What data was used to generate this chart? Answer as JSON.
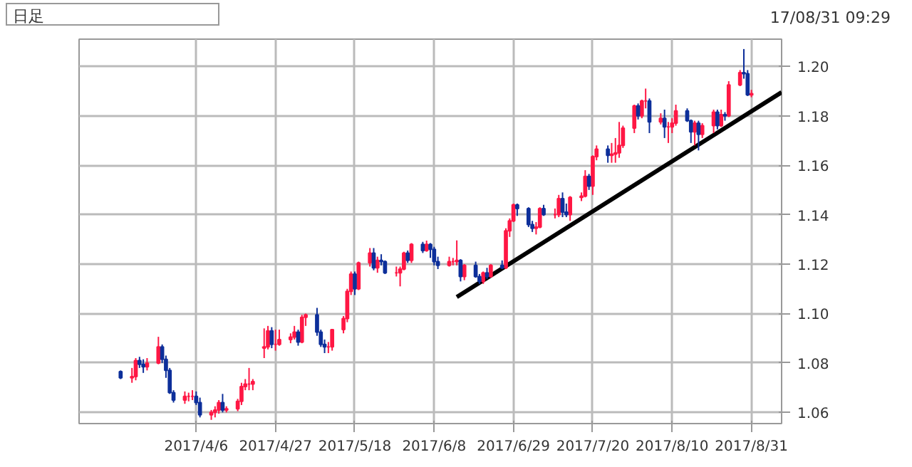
{
  "chart_data": {
    "type": "candlestick",
    "annotations": [
      "日足",
      "17/08/31 09:29"
    ],
    "xlim": [
      "2017-03-06",
      "2017-09-08"
    ],
    "xticks": [
      {
        "value": "2017-04-06",
        "label": "2017/4/6"
      },
      {
        "value": "2017-04-27",
        "label": "2017/4/27"
      },
      {
        "value": "2017-05-18",
        "label": "2017/5/18"
      },
      {
        "value": "2017-06-08",
        "label": "2017/6/8"
      },
      {
        "value": "2017-06-29",
        "label": "2017/6/29"
      },
      {
        "value": "2017-07-20",
        "label": "2017/7/20"
      },
      {
        "value": "2017-08-10",
        "label": "2017/8/10"
      },
      {
        "value": "2017-08-31",
        "label": "2017/8/31"
      }
    ],
    "ylim": [
      1.0555,
      1.211
    ],
    "yticks": [
      1.06,
      1.08,
      {
        "value": 1.1,
        "label": "1.10"
      },
      1.12,
      1.14,
      1.16,
      1.18,
      {
        "value": 1.2,
        "label": "1.20"
      }
    ],
    "grid": true,
    "series": [
      {
        "color": "#ff1744",
        "x": [
          "2017-03-20",
          "2017-03-21",
          "2017-03-24",
          "2017-03-27",
          "2017-04-03",
          "2017-04-04",
          "2017-04-05",
          "2017-04-10",
          "2017-04-11",
          "2017-04-12",
          "2017-04-14",
          "2017-04-17",
          "2017-04-18",
          "2017-04-19",
          "2017-04-20",
          "2017-04-21",
          "2017-04-24",
          "2017-04-25",
          "2017-04-27",
          "2017-04-28",
          "2017-05-01",
          "2017-05-02",
          "2017-05-04",
          "2017-05-05",
          "2017-05-11",
          "2017-05-12",
          "2017-05-15",
          "2017-05-16",
          "2017-05-17",
          "2017-05-19",
          "2017-05-22",
          "2017-05-24",
          "2017-05-29",
          "2017-05-30",
          "2017-05-31",
          "2017-06-02",
          "2017-06-06",
          "2017-06-12",
          "2017-06-13",
          "2017-06-14",
          "2017-06-16",
          "2017-06-21",
          "2017-06-23",
          "2017-06-27",
          "2017-06-28",
          "2017-06-29",
          "2017-07-05",
          "2017-07-06",
          "2017-07-10",
          "2017-07-11",
          "2017-07-14",
          "2017-07-17",
          "2017-07-18",
          "2017-07-20",
          "2017-07-21",
          "2017-07-25",
          "2017-07-26",
          "2017-07-27",
          "2017-07-28",
          "2017-07-31",
          "2017-08-02",
          "2017-08-03",
          "2017-08-07",
          "2017-08-09",
          "2017-08-10",
          "2017-08-11",
          "2017-08-16",
          "2017-08-18",
          "2017-08-21",
          "2017-08-23",
          "2017-08-25",
          "2017-08-28",
          "2017-08-31"
        ],
        "ohlc": [
          [
            1.074,
            1.078,
            1.072,
            1.0745
          ],
          [
            1.0745,
            1.082,
            1.073,
            1.081
          ],
          [
            1.0785,
            1.082,
            1.077,
            1.08
          ],
          [
            1.08,
            1.0906,
            1.0795,
            1.0865
          ],
          [
            1.065,
            1.0685,
            1.0635,
            1.0665
          ],
          [
            1.0665,
            1.068,
            1.0645,
            1.0665
          ],
          [
            1.0665,
            1.069,
            1.065,
            1.0665
          ],
          [
            1.059,
            1.061,
            1.057,
            1.06
          ],
          [
            1.06,
            1.0625,
            1.058,
            1.061
          ],
          [
            1.061,
            1.065,
            1.0595,
            1.064
          ],
          [
            1.061,
            1.0625,
            1.06,
            1.0615
          ],
          [
            1.0615,
            1.0655,
            1.0605,
            1.0645
          ],
          [
            1.0645,
            1.072,
            1.063,
            1.0705
          ],
          [
            1.0705,
            1.0735,
            1.069,
            1.0715
          ],
          [
            1.0715,
            1.078,
            1.069,
            1.0715
          ],
          [
            1.0715,
            1.0735,
            1.069,
            1.0725
          ],
          [
            1.086,
            1.094,
            1.082,
            1.0865
          ],
          [
            1.0865,
            1.095,
            1.0855,
            1.093
          ],
          [
            1.0875,
            1.0935,
            1.085,
            1.0875
          ],
          [
            1.0875,
            1.0935,
            1.087,
            1.0895
          ],
          [
            1.0895,
            1.092,
            1.088,
            1.0905
          ],
          [
            1.0905,
            1.095,
            1.0895,
            1.0925
          ],
          [
            1.0885,
            1.0995,
            1.088,
            1.0985
          ],
          [
            1.0985,
            1.1,
            1.095,
            1.0995
          ],
          [
            1.0865,
            1.0885,
            1.084,
            1.0865
          ],
          [
            1.0865,
            1.0935,
            1.085,
            1.0935
          ],
          [
            1.0935,
            1.099,
            1.092,
            1.098
          ],
          [
            1.098,
            1.11,
            1.0965,
            1.109
          ],
          [
            1.109,
            1.117,
            1.1075,
            1.116
          ],
          [
            1.11,
            1.121,
            1.1095,
            1.1205
          ],
          [
            1.1205,
            1.1265,
            1.119,
            1.1245
          ],
          [
            1.1185,
            1.123,
            1.1165,
            1.1215
          ],
          [
            1.1165,
            1.119,
            1.115,
            1.1165
          ],
          [
            1.1165,
            1.119,
            1.111,
            1.118
          ],
          [
            1.118,
            1.125,
            1.1175,
            1.1245
          ],
          [
            1.1215,
            1.1285,
            1.1205,
            1.128
          ],
          [
            1.1255,
            1.1295,
            1.125,
            1.128
          ],
          [
            1.1195,
            1.123,
            1.119,
            1.121
          ],
          [
            1.121,
            1.1225,
            1.1195,
            1.121
          ],
          [
            1.121,
            1.1296,
            1.1195,
            1.1215
          ],
          [
            1.115,
            1.12,
            1.1135,
            1.1195
          ],
          [
            1.113,
            1.117,
            1.112,
            1.1165
          ],
          [
            1.115,
            1.12,
            1.1145,
            1.1195
          ],
          [
            1.1185,
            1.1345,
            1.118,
            1.1335
          ],
          [
            1.1335,
            1.1385,
            1.131,
            1.1375
          ],
          [
            1.1375,
            1.1445,
            1.137,
            1.144
          ],
          [
            1.1345,
            1.137,
            1.132,
            1.135
          ],
          [
            1.135,
            1.143,
            1.1345,
            1.1425
          ],
          [
            1.14,
            1.1425,
            1.1385,
            1.14
          ],
          [
            1.14,
            1.148,
            1.139,
            1.1465
          ],
          [
            1.14,
            1.1475,
            1.1375,
            1.147
          ],
          [
            1.147,
            1.149,
            1.1455,
            1.1475
          ],
          [
            1.1475,
            1.158,
            1.147,
            1.1555
          ],
          [
            1.1515,
            1.164,
            1.148,
            1.1635
          ],
          [
            1.1635,
            1.168,
            1.162,
            1.1665
          ],
          [
            1.164,
            1.169,
            1.161,
            1.1645
          ],
          [
            1.1645,
            1.171,
            1.161,
            1.165
          ],
          [
            1.165,
            1.1775,
            1.163,
            1.168
          ],
          [
            1.168,
            1.176,
            1.167,
            1.175
          ],
          [
            1.175,
            1.1845,
            1.173,
            1.184
          ],
          [
            1.18,
            1.1865,
            1.179,
            1.186
          ],
          [
            1.186,
            1.191,
            1.183,
            1.186
          ],
          [
            1.1775,
            1.181,
            1.1765,
            1.179
          ],
          [
            1.1755,
            1.1775,
            1.169,
            1.1755
          ],
          [
            1.1755,
            1.179,
            1.173,
            1.177
          ],
          [
            1.177,
            1.1845,
            1.176,
            1.182
          ],
          [
            1.1735,
            1.178,
            1.168,
            1.177
          ],
          [
            1.1725,
            1.177,
            1.171,
            1.176
          ],
          [
            1.176,
            1.1825,
            1.173,
            1.1815
          ],
          [
            1.176,
            1.1825,
            1.1755,
            1.1805
          ],
          [
            1.18,
            1.194,
            1.1795,
            1.1925
          ],
          [
            1.1925,
            1.1985,
            1.192,
            1.1975
          ],
          [
            1.1885,
            1.1905,
            1.1875,
            1.189
          ]
        ]
      },
      {
        "color": "#0d2f9a",
        "x": [
          "2017-03-17",
          "2017-03-22",
          "2017-03-23",
          "2017-03-28",
          "2017-03-29",
          "2017-03-30",
          "2017-03-31",
          "2017-04-06",
          "2017-04-07",
          "2017-04-13",
          "2017-04-26",
          "2017-05-03",
          "2017-05-08",
          "2017-05-09",
          "2017-05-10",
          "2017-05-18",
          "2017-05-23",
          "2017-05-25",
          "2017-05-26",
          "2017-06-01",
          "2017-06-05",
          "2017-06-07",
          "2017-06-08",
          "2017-06-09",
          "2017-06-15",
          "2017-06-19",
          "2017-06-20",
          "2017-06-22",
          "2017-06-26",
          "2017-06-30",
          "2017-07-03",
          "2017-07-04",
          "2017-07-07",
          "2017-07-12",
          "2017-07-13",
          "2017-07-19",
          "2017-07-24",
          "2017-08-01",
          "2017-08-04",
          "2017-08-08",
          "2017-08-14",
          "2017-08-15",
          "2017-08-17",
          "2017-08-22",
          "2017-08-24",
          "2017-08-29",
          "2017-08-30"
        ],
        "ohlc": [
          [
            1.0765,
            1.077,
            1.0735,
            1.074
          ],
          [
            1.081,
            1.0825,
            1.078,
            1.0795
          ],
          [
            1.0795,
            1.0815,
            1.076,
            1.0785
          ],
          [
            1.0865,
            1.0875,
            1.08,
            1.0815
          ],
          [
            1.0815,
            1.083,
            1.074,
            1.077
          ],
          [
            1.077,
            1.078,
            1.0675,
            1.068
          ],
          [
            1.068,
            1.069,
            1.064,
            1.065
          ],
          [
            1.0665,
            1.0685,
            1.063,
            1.064
          ],
          [
            1.064,
            1.066,
            1.058,
            1.059
          ],
          [
            1.064,
            1.0675,
            1.06,
            1.061
          ],
          [
            1.093,
            1.0945,
            1.086,
            1.0875
          ],
          [
            1.0925,
            1.0935,
            1.087,
            1.0885
          ],
          [
            1.0995,
            1.1023,
            1.091,
            1.0925
          ],
          [
            1.0925,
            1.0935,
            1.0865,
            1.0875
          ],
          [
            1.0875,
            1.0895,
            1.084,
            1.0865
          ],
          [
            1.116,
            1.117,
            1.1075,
            1.11
          ],
          [
            1.1245,
            1.1265,
            1.1175,
            1.1185
          ],
          [
            1.1215,
            1.124,
            1.1195,
            1.121
          ],
          [
            1.121,
            1.1215,
            1.116,
            1.1165
          ],
          [
            1.1245,
            1.1255,
            1.1205,
            1.1215
          ],
          [
            1.128,
            1.129,
            1.1245,
            1.1255
          ],
          [
            1.128,
            1.1285,
            1.1225,
            1.126
          ],
          [
            1.126,
            1.127,
            1.1195,
            1.121
          ],
          [
            1.121,
            1.123,
            1.118,
            1.1195
          ],
          [
            1.1215,
            1.122,
            1.113,
            1.115
          ],
          [
            1.1195,
            1.121,
            1.1145,
            1.115
          ],
          [
            1.115,
            1.116,
            1.112,
            1.113
          ],
          [
            1.1165,
            1.1185,
            1.114,
            1.115
          ],
          [
            1.1195,
            1.1215,
            1.118,
            1.1185
          ],
          [
            1.144,
            1.1445,
            1.1395,
            1.1425
          ],
          [
            1.1425,
            1.143,
            1.135,
            1.136
          ],
          [
            1.136,
            1.1375,
            1.133,
            1.1345
          ],
          [
            1.1425,
            1.144,
            1.1395,
            1.14
          ],
          [
            1.1465,
            1.149,
            1.139,
            1.141
          ],
          [
            1.141,
            1.1445,
            1.139,
            1.14
          ],
          [
            1.1555,
            1.1565,
            1.15,
            1.1515
          ],
          [
            1.1665,
            1.168,
            1.161,
            1.164
          ],
          [
            1.184,
            1.185,
            1.1785,
            1.18
          ],
          [
            1.186,
            1.187,
            1.173,
            1.1775
          ],
          [
            1.179,
            1.1825,
            1.171,
            1.1755
          ],
          [
            1.182,
            1.183,
            1.1775,
            1.178
          ],
          [
            1.178,
            1.1785,
            1.169,
            1.1735
          ],
          [
            1.177,
            1.178,
            1.166,
            1.1725
          ],
          [
            1.1815,
            1.1825,
            1.1745,
            1.176
          ],
          [
            1.1805,
            1.1815,
            1.178,
            1.18
          ],
          [
            1.1975,
            1.207,
            1.195,
            1.197
          ],
          [
            1.197,
            1.1985,
            1.188,
            1.1885
          ]
        ]
      },
      {
        "type": "line",
        "color": "#000000",
        "x": [
          "2017-06-14",
          "2017-09-08"
        ],
        "values": [
          1.1067,
          1.1895
        ]
      }
    ]
  }
}
